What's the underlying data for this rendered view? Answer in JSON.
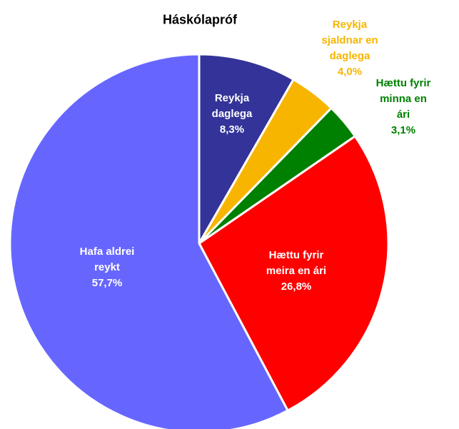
{
  "chart_data": {
    "type": "pie",
    "title": "Háskólapróf",
    "categories": [
      "Reykja\ndaglega",
      "Reykja\nsjaldnar en\ndaglega",
      "Hættu fyrir\nminna en ári",
      "Hættu fyrir\nmeira en ári",
      "Hafa aldrei\nreykt"
    ],
    "values": [
      8.3,
      4.0,
      3.1,
      26.8,
      57.7
    ],
    "value_labels": [
      "8,3%",
      "4,0%",
      "3,1%",
      "26,8%",
      "57,7%"
    ],
    "colors": [
      "#333399",
      "#f7b500",
      "#008000",
      "#ff0000",
      "#6666ff"
    ]
  }
}
